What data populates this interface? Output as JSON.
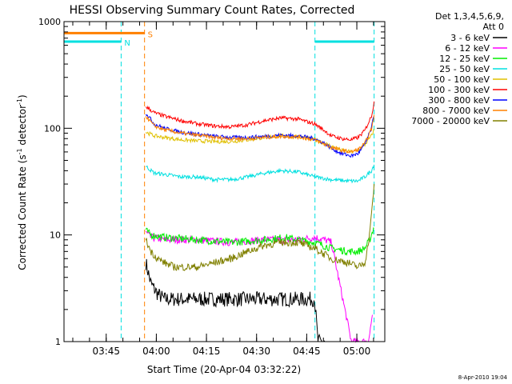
{
  "chart_data": {
    "type": "line",
    "title": "HESSI Observing Summary Count Rates, Corrected",
    "xlabel": "Start Time (20-Apr-04 03:32:22)",
    "ylabel": "Corrected Count Rate (s",
    "ylabel_unit_1": "-1",
    "ylabel_mid": " detector",
    "ylabel_unit_2": "-1",
    "ylabel_end": ")",
    "y_scale": "log",
    "ylim": [
      1,
      1000
    ],
    "xlim_minutes_after_start": [
      0,
      96
    ],
    "x_ticks": [
      {
        "label": "03:45",
        "minute": 12.63
      },
      {
        "label": "04:00",
        "minute": 27.63
      },
      {
        "label": "04:15",
        "minute": 42.63
      },
      {
        "label": "04:30",
        "minute": 57.63
      },
      {
        "label": "04:45",
        "minute": 72.63
      },
      {
        "label": "05:00",
        "minute": 87.63
      }
    ],
    "y_ticks": [
      {
        "label": "1",
        "value": 1
      },
      {
        "label": "10",
        "value": 10
      },
      {
        "label": "100",
        "value": 100
      },
      {
        "label": "1000",
        "value": 1000
      }
    ],
    "legend_header": [
      "Det 1,3,4,5,6,9,",
      "Att 0"
    ],
    "legend_placement": "right-outside",
    "annotations": [
      {
        "text": "N",
        "color": "#00e0e0"
      },
      {
        "text": "S",
        "color": "#ff8000"
      }
    ],
    "markers": [
      {
        "name": "N",
        "color": "#00e0e0",
        "value": 650,
        "ranges": [
          [
            0,
            17.1
          ],
          [
            75.1,
            92.8
          ]
        ]
      },
      {
        "name": "S",
        "color": "#ff8000",
        "value": 780,
        "ranges": [
          [
            0,
            24.1
          ]
        ]
      }
    ],
    "vertical_lines": [
      {
        "minute": 17.1,
        "color": "#00e0e0"
      },
      {
        "minute": 24.1,
        "color": "#ff8000"
      },
      {
        "minute": 75.1,
        "color": "#00e0e0"
      },
      {
        "minute": 92.8,
        "color": "#00e0e0"
      }
    ],
    "footer": "8-Apr-2010 19:04",
    "series": [
      {
        "name": "3 - 6 keV",
        "color": "#000000",
        "x": [
          24.5,
          26,
          28,
          30,
          34,
          40,
          50,
          60,
          70,
          75,
          76,
          78
        ],
        "y": [
          5.5,
          3.5,
          2.8,
          2.5,
          2.5,
          2.5,
          2.5,
          2.5,
          2.5,
          2.5,
          1,
          1
        ]
      },
      {
        "name": "6 - 12 keV",
        "color": "#ff00ff",
        "x": [
          24.5,
          26,
          30,
          40,
          50,
          60,
          70,
          75,
          78,
          80,
          86,
          90,
          91,
          91.5,
          92.3
        ],
        "y": [
          10.5,
          9.5,
          9,
          9,
          8.5,
          9,
          9,
          9.5,
          9,
          8.5,
          1,
          1,
          1,
          1.2,
          1.8
        ]
      },
      {
        "name": "12 - 25 keV",
        "color": "#00ee00",
        "x": [
          24.5,
          26,
          30,
          40,
          50,
          60,
          66,
          70,
          75,
          80,
          85,
          88,
          90,
          91.5,
          92.8
        ],
        "y": [
          11,
          10,
          9.5,
          9,
          8.5,
          9,
          9.5,
          9,
          8.5,
          7.5,
          7,
          7,
          7.5,
          9,
          12
        ]
      },
      {
        "name": "25 - 50 keV",
        "color": "#00e0e0",
        "x": [
          24.5,
          27,
          30,
          35,
          40,
          45,
          50,
          55,
          60,
          65,
          70,
          75,
          80,
          85,
          88,
          90,
          92,
          92.8
        ],
        "y": [
          44,
          38,
          37,
          35,
          35,
          33,
          33,
          35,
          38,
          40,
          39,
          35,
          33,
          32,
          32,
          35,
          40,
          46
        ]
      },
      {
        "name": "50 - 100 keV",
        "color": "#e0c000",
        "x": [
          24.5,
          27,
          30,
          35,
          40,
          45,
          50,
          55,
          60,
          65,
          70,
          75,
          78,
          80,
          83,
          86,
          88,
          90,
          92,
          92.8
        ],
        "y": [
          92,
          85,
          82,
          78,
          76,
          75,
          75,
          78,
          82,
          85,
          84,
          78,
          72,
          68,
          62,
          60,
          62,
          70,
          85,
          97
        ]
      },
      {
        "name": "100 - 300 keV",
        "color": "#ff0000",
        "x": [
          24.5,
          27,
          30,
          35,
          40,
          45,
          50,
          55,
          60,
          65,
          70,
          75,
          78,
          80,
          83,
          86,
          88,
          90,
          92,
          92.8
        ],
        "y": [
          160,
          140,
          130,
          118,
          110,
          105,
          103,
          108,
          118,
          125,
          122,
          110,
          95,
          85,
          80,
          78,
          82,
          95,
          130,
          175
        ]
      },
      {
        "name": "300 - 800 keV",
        "color": "#0000ff",
        "x": [
          24.5,
          27,
          30,
          35,
          40,
          45,
          50,
          55,
          60,
          65,
          70,
          75,
          78,
          80,
          83,
          86,
          88,
          90,
          92,
          92.8
        ],
        "y": [
          140,
          110,
          100,
          92,
          88,
          84,
          82,
          82,
          84,
          86,
          85,
          80,
          72,
          65,
          58,
          55,
          58,
          70,
          100,
          135
        ]
      },
      {
        "name": "800 - 7000 keV",
        "color": "#ff8000",
        "x": [
          24.5,
          27,
          30,
          35,
          40,
          45,
          50,
          55,
          60,
          65,
          70,
          75,
          78,
          80,
          83,
          86,
          88,
          90,
          92,
          92.8
        ],
        "y": [
          130,
          105,
          97,
          90,
          86,
          82,
          80,
          80,
          82,
          84,
          83,
          78,
          71,
          66,
          62,
          60,
          63,
          72,
          98,
          130
        ]
      },
      {
        "name": "7000 - 20000 keV",
        "color": "#808000",
        "x": [
          24.5,
          26,
          28,
          30,
          33,
          36,
          40,
          45,
          50,
          55,
          60,
          65,
          70,
          75,
          80,
          85,
          88,
          90,
          91,
          92,
          92.8
        ],
        "y": [
          9,
          7,
          6,
          5.5,
          5,
          5,
          5,
          5.5,
          6,
          7,
          8,
          8.5,
          8.5,
          7.5,
          6,
          5.5,
          5,
          5.5,
          8,
          15,
          30
        ]
      }
    ]
  }
}
